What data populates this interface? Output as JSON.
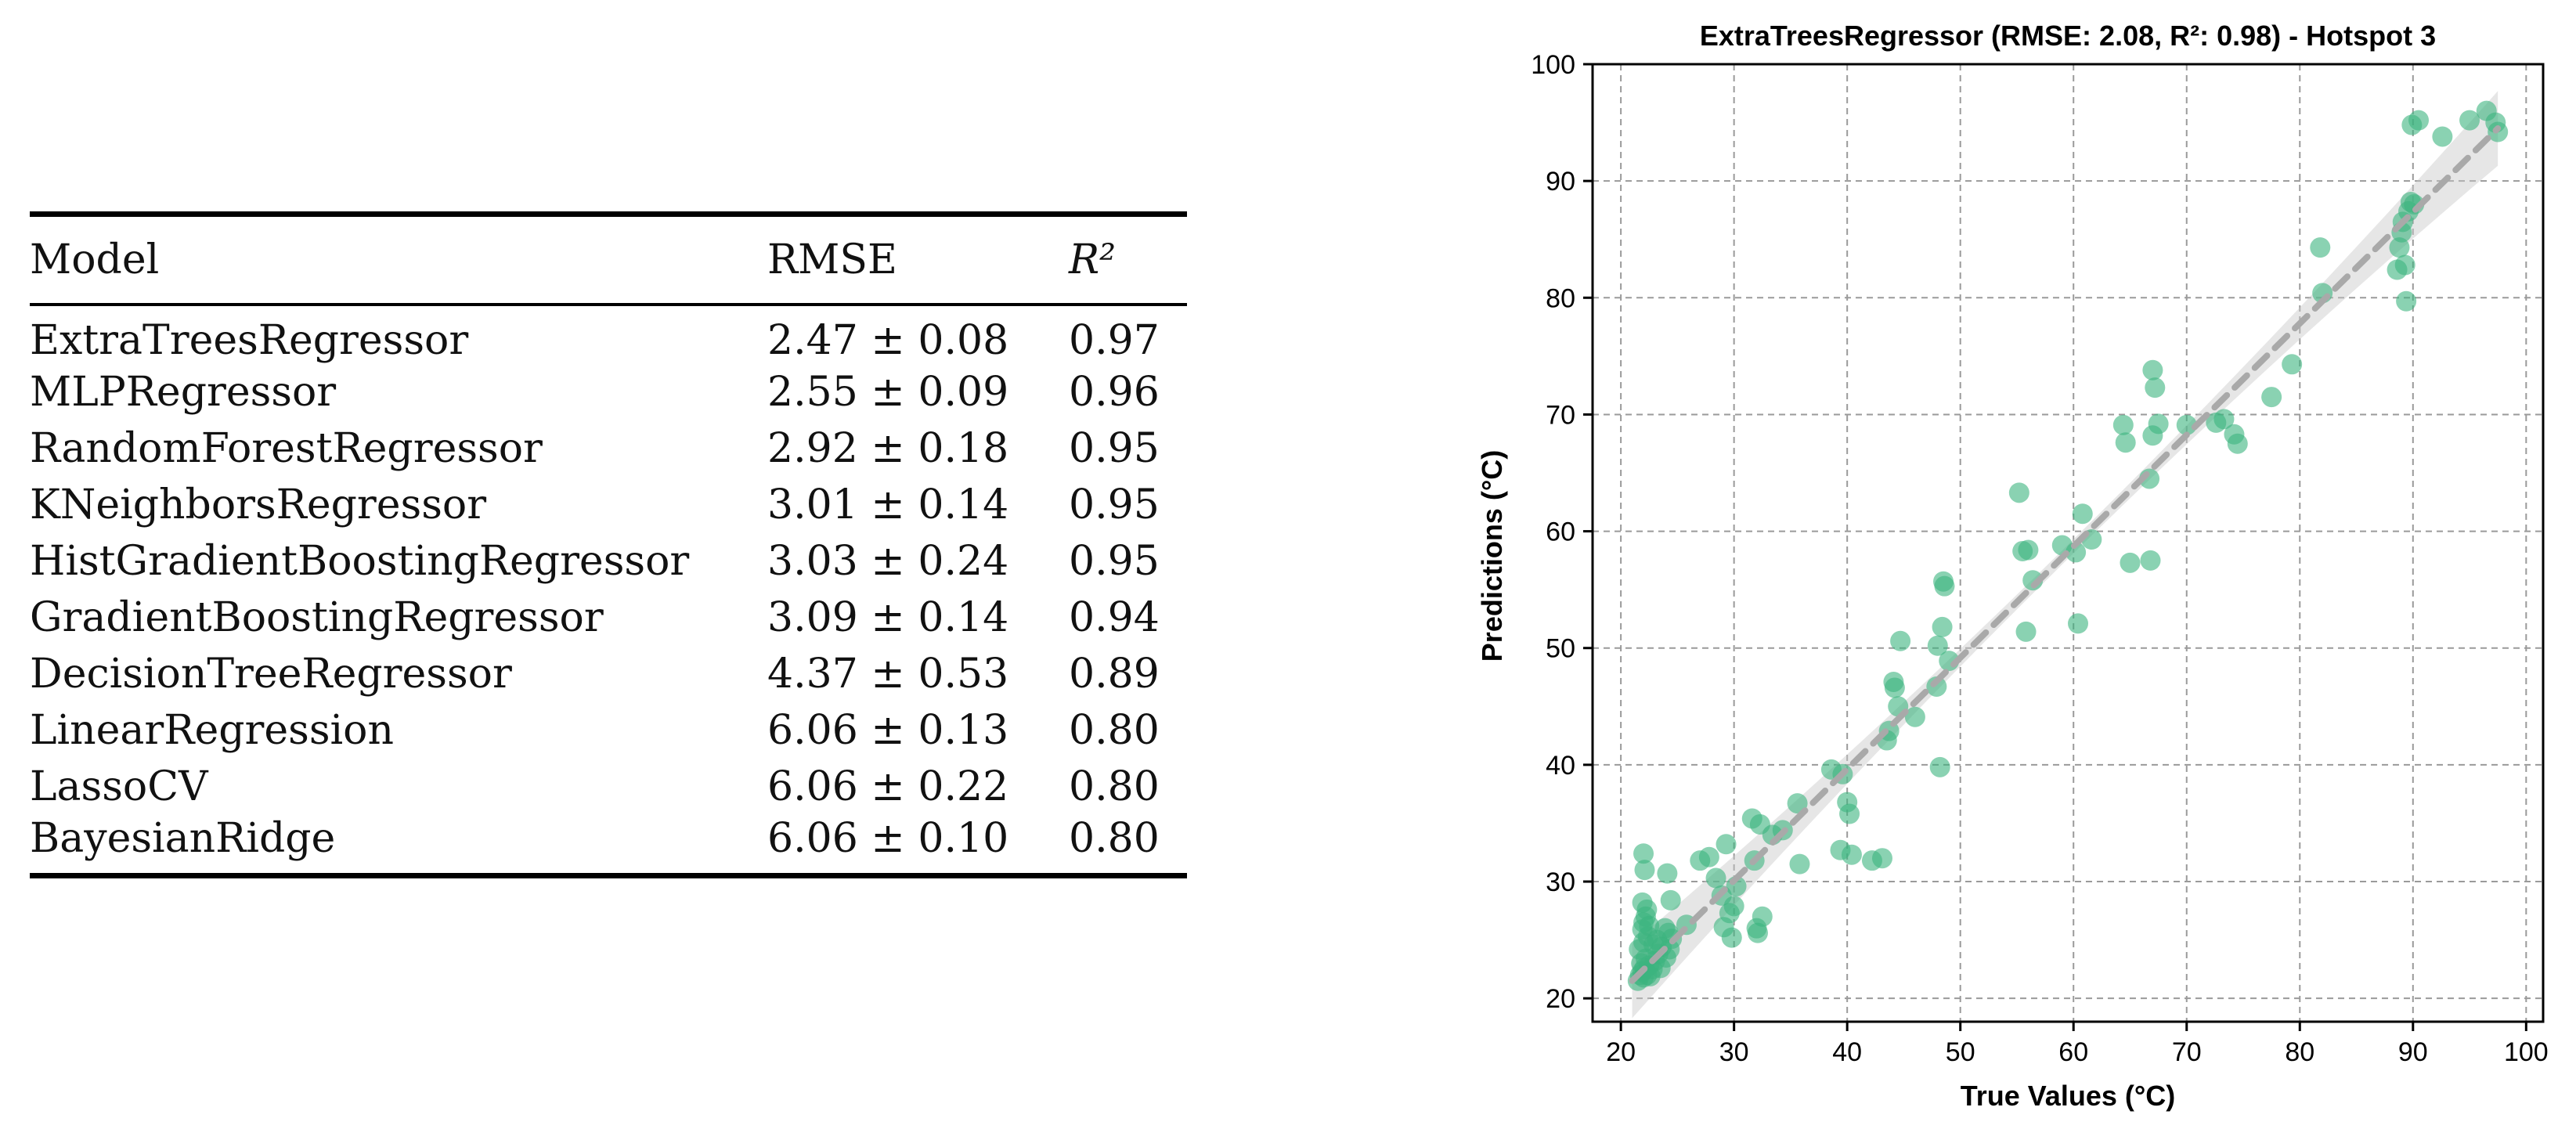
{
  "table": {
    "headers": {
      "model": "Model",
      "rmse": "RMSE",
      "r2": "R²"
    },
    "rows": [
      {
        "model": "ExtraTreesRegressor",
        "rmse": "2.47 ± 0.08",
        "r2": "0.97"
      },
      {
        "model": "MLPRegressor",
        "rmse": "2.55 ± 0.09",
        "r2": "0.96"
      },
      {
        "model": "RandomForestRegressor",
        "rmse": "2.92 ± 0.18",
        "r2": "0.95"
      },
      {
        "model": "KNeighborsRegressor",
        "rmse": "3.01 ± 0.14",
        "r2": "0.95"
      },
      {
        "model": "HistGradientBoostingRegressor",
        "rmse": "3.03 ± 0.24",
        "r2": "0.95"
      },
      {
        "model": "GradientBoostingRegressor",
        "rmse": "3.09 ± 0.14",
        "r2": "0.94"
      },
      {
        "model": "DecisionTreeRegressor",
        "rmse": "4.37 ± 0.53",
        "r2": "0.89"
      },
      {
        "model": "LinearRegression",
        "rmse": "6.06 ± 0.13",
        "r2": "0.80"
      },
      {
        "model": "LassoCV",
        "rmse": "6.06 ± 0.22",
        "r2": "0.80"
      },
      {
        "model": "BayesianRidge",
        "rmse": "6.06 ± 0.10",
        "r2": "0.80"
      }
    ]
  },
  "chart_data": {
    "type": "scatter",
    "title": "ExtraTreesRegressor (RMSE: 2.08, R²: 0.98) - Hotspot 3",
    "xlabel": "True Values (°C)",
    "ylabel": "Predictions (°C)",
    "xlim": [
      17.5,
      101.5
    ],
    "ylim": [
      18,
      100
    ],
    "xticks": [
      20,
      30,
      40,
      50,
      60,
      70,
      80,
      90,
      100
    ],
    "yticks": [
      20,
      30,
      40,
      50,
      60,
      70,
      80,
      90,
      100
    ],
    "grid": true,
    "point_color": "#3cb47e",
    "line_color": "#a9a9a9",
    "band_color": "#c8c8c8",
    "fit_line": {
      "x": [
        21,
        97.5
      ],
      "y": [
        21.5,
        94.5
      ]
    },
    "points": [
      [
        21.5,
        21.5
      ],
      [
        21.7,
        22.0
      ],
      [
        21.9,
        22.3
      ],
      [
        22.0,
        21.8
      ],
      [
        22.1,
        22.6
      ],
      [
        22.3,
        22.0
      ],
      [
        21.8,
        23.0
      ],
      [
        22.2,
        23.4
      ],
      [
        22.5,
        22.8
      ],
      [
        21.6,
        24.2
      ],
      [
        22.0,
        24.8
      ],
      [
        22.4,
        25.3
      ],
      [
        21.9,
        25.9
      ],
      [
        22.0,
        26.5
      ],
      [
        22.2,
        27.0
      ],
      [
        22.3,
        27.6
      ],
      [
        21.9,
        28.2
      ],
      [
        22.1,
        31.0
      ],
      [
        22.0,
        32.4
      ],
      [
        22.8,
        22.5
      ],
      [
        23.0,
        23.2
      ],
      [
        23.3,
        23.8
      ],
      [
        23.6,
        24.4
      ],
      [
        23.2,
        25.0
      ],
      [
        24.0,
        23.5
      ],
      [
        24.3,
        24.2
      ],
      [
        24.5,
        25.1
      ],
      [
        24.2,
        25.6
      ],
      [
        24.4,
        28.4
      ],
      [
        24.1,
        30.7
      ],
      [
        22.6,
        21.9
      ],
      [
        23.5,
        22.6
      ],
      [
        22.9,
        24.6
      ],
      [
        23.9,
        26.0
      ],
      [
        22.5,
        26.2
      ],
      [
        25.8,
        26.3
      ],
      [
        27.0,
        31.8
      ],
      [
        27.8,
        32.1
      ],
      [
        28.4,
        30.3
      ],
      [
        28.9,
        28.8
      ],
      [
        29.1,
        26.1
      ],
      [
        29.3,
        33.2
      ],
      [
        29.6,
        27.3
      ],
      [
        29.8,
        25.2
      ],
      [
        30.0,
        27.9
      ],
      [
        30.2,
        29.6
      ],
      [
        31.6,
        35.4
      ],
      [
        31.8,
        31.8
      ],
      [
        32.0,
        26.0
      ],
      [
        32.1,
        25.6
      ],
      [
        32.3,
        34.9
      ],
      [
        32.5,
        27.0
      ],
      [
        33.4,
        34.0
      ],
      [
        34.3,
        34.4
      ],
      [
        35.6,
        36.7
      ],
      [
        35.8,
        31.5
      ],
      [
        38.6,
        39.6
      ],
      [
        39.4,
        32.7
      ],
      [
        39.6,
        39.2
      ],
      [
        40.0,
        36.8
      ],
      [
        40.2,
        35.8
      ],
      [
        40.4,
        32.3
      ],
      [
        42.2,
        31.8
      ],
      [
        43.1,
        32.0
      ],
      [
        43.5,
        42.1
      ],
      [
        43.7,
        42.9
      ],
      [
        44.1,
        47.1
      ],
      [
        44.2,
        46.6
      ],
      [
        44.5,
        45.0
      ],
      [
        44.7,
        50.6
      ],
      [
        46.0,
        44.1
      ],
      [
        47.9,
        46.7
      ],
      [
        48.0,
        50.2
      ],
      [
        48.4,
        51.8
      ],
      [
        48.5,
        55.7
      ],
      [
        48.6,
        55.3
      ],
      [
        48.2,
        39.8
      ],
      [
        49.0,
        48.9
      ],
      [
        55.2,
        63.3
      ],
      [
        55.5,
        58.3
      ],
      [
        55.8,
        51.4
      ],
      [
        56.0,
        58.4
      ],
      [
        56.4,
        55.8
      ],
      [
        59.0,
        58.8
      ],
      [
        60.2,
        58.2
      ],
      [
        60.4,
        52.1
      ],
      [
        60.8,
        61.5
      ],
      [
        61.6,
        59.3
      ],
      [
        64.4,
        69.1
      ],
      [
        64.6,
        67.6
      ],
      [
        65.0,
        57.3
      ],
      [
        66.7,
        64.5
      ],
      [
        66.8,
        57.5
      ],
      [
        67.0,
        73.8
      ],
      [
        67.2,
        72.3
      ],
      [
        67.0,
        68.2
      ],
      [
        67.5,
        69.2
      ],
      [
        70.0,
        69.1
      ],
      [
        72.6,
        69.3
      ],
      [
        73.3,
        69.6
      ],
      [
        74.2,
        68.3
      ],
      [
        74.5,
        67.5
      ],
      [
        77.5,
        71.5
      ],
      [
        79.3,
        74.3
      ],
      [
        81.8,
        84.3
      ],
      [
        82.0,
        80.4
      ],
      [
        88.6,
        82.4
      ],
      [
        88.8,
        84.3
      ],
      [
        89.0,
        85.6
      ],
      [
        89.1,
        86.5
      ],
      [
        89.3,
        82.8
      ],
      [
        89.4,
        79.7
      ],
      [
        89.6,
        87.4
      ],
      [
        89.8,
        88.2
      ],
      [
        90.1,
        88.0
      ],
      [
        89.9,
        94.8
      ],
      [
        90.5,
        95.2
      ],
      [
        92.6,
        93.8
      ],
      [
        95.0,
        95.2
      ],
      [
        96.5,
        96.0
      ],
      [
        97.3,
        95.0
      ],
      [
        97.5,
        94.2
      ]
    ]
  }
}
